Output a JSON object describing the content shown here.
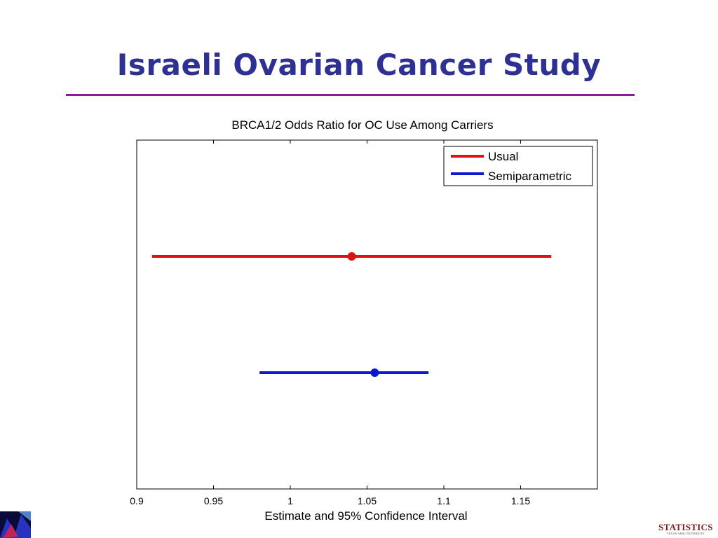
{
  "slide": {
    "title": "Israeli Ovarian Cancer Study",
    "logo_text": "STATISTICS",
    "logo_subtext": "TEXAS A&M UNIVERSITY"
  },
  "colors": {
    "title": "#2e3192",
    "rule": "#8b1a9a",
    "usual": "#e01010",
    "semiparametric": "#0a18d0"
  },
  "chart_data": {
    "type": "scatter",
    "title": "BRCA1/2 Odds Ratio for OC Use Among Carriers",
    "xlabel": "Estimate and 95% Confidence Interval",
    "ylabel": "",
    "xlim": [
      0.9,
      1.2
    ],
    "ylim": [
      0,
      3
    ],
    "xticks": [
      "0.9",
      "0.95",
      "1",
      "1.05",
      "1.1",
      "1.15"
    ],
    "grid": false,
    "legend_position": "top-right",
    "series": [
      {
        "name": "Usual",
        "estimate": 1.04,
        "lower": 0.91,
        "upper": 1.17,
        "y": 2,
        "color": "#e01010"
      },
      {
        "name": "Semiparametric",
        "estimate": 1.055,
        "lower": 0.98,
        "upper": 1.09,
        "y": 1,
        "color": "#0a18d0"
      }
    ]
  }
}
